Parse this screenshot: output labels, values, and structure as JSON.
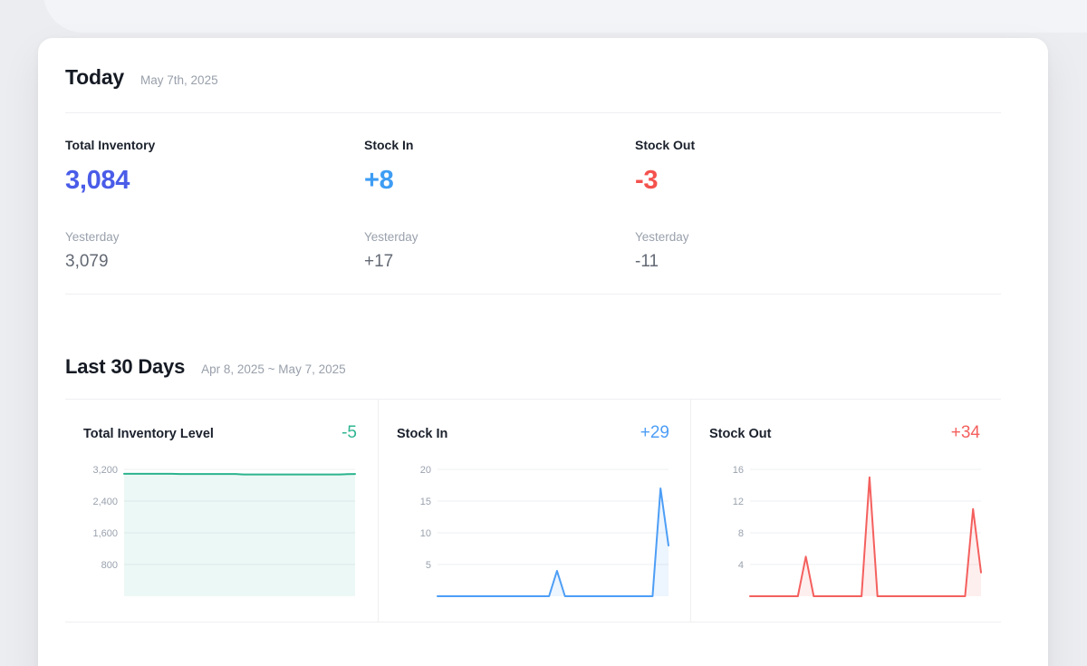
{
  "today": {
    "title": "Today",
    "date": "May 7th, 2025",
    "stats": [
      {
        "label": "Total Inventory",
        "value": "3,084",
        "color": "#4A5CE8",
        "yesterday_label": "Yesterday",
        "yesterday_value": "3,079"
      },
      {
        "label": "Stock In",
        "value": "+8",
        "color": "#3E9DF4",
        "yesterday_label": "Yesterday",
        "yesterday_value": "+17"
      },
      {
        "label": "Stock Out",
        "value": "-3",
        "color": "#F4524E",
        "yesterday_label": "Yesterday",
        "yesterday_value": "-11"
      }
    ]
  },
  "last30": {
    "title": "Last 30 Days",
    "range": "Apr 8, 2025 ~ May 7, 2025"
  },
  "chart_data": [
    {
      "type": "area",
      "title": "Total Inventory Level",
      "change_label": "-5",
      "color": "#2FB592",
      "line_color": "#2CB48E",
      "fill_color": "rgba(44,180,142,0.09)",
      "ymax": 3200,
      "ylim": [
        0,
        3200
      ],
      "grid": true,
      "x_start": "Apr 8, 2025",
      "x_end": "May 7, 2025",
      "n_points": 30,
      "yticks": [
        {
          "value": 3200,
          "label": "3,200"
        },
        {
          "value": 2400,
          "label": "2,400"
        },
        {
          "value": 1600,
          "label": "1,600"
        },
        {
          "value": 800,
          "label": "800"
        }
      ],
      "values": [
        3089,
        3089,
        3089,
        3089,
        3089,
        3089,
        3089,
        3084,
        3084,
        3084,
        3084,
        3084,
        3084,
        3084,
        3084,
        3073,
        3073,
        3073,
        3073,
        3073,
        3073,
        3073,
        3073,
        3073,
        3073,
        3073,
        3073,
        3073,
        3079,
        3084
      ]
    },
    {
      "type": "area",
      "title": "Stock In",
      "change_label": "+29",
      "color": "#4D9EF6",
      "line_color": "#4D9EF6",
      "fill_color": "rgba(77,158,246,0.10)",
      "ymax": 20,
      "ylim": [
        0,
        20
      ],
      "grid": true,
      "x_start": "Apr 8, 2025",
      "x_end": "May 7, 2025",
      "n_points": 30,
      "yticks": [
        {
          "value": 20,
          "label": "20"
        },
        {
          "value": 15,
          "label": "15"
        },
        {
          "value": 10,
          "label": "10"
        },
        {
          "value": 5,
          "label": "5"
        }
      ],
      "values": [
        0,
        0,
        0,
        0,
        0,
        0,
        0,
        0,
        0,
        0,
        0,
        0,
        0,
        0,
        0,
        4,
        0,
        0,
        0,
        0,
        0,
        0,
        0,
        0,
        0,
        0,
        0,
        0,
        17,
        8
      ]
    },
    {
      "type": "area",
      "title": "Stock Out",
      "change_label": "+34",
      "color": "#F4605E",
      "line_color": "#F4605E",
      "fill_color": "rgba(244,96,94,0.10)",
      "ymax": 16,
      "ylim": [
        0,
        16
      ],
      "grid": true,
      "x_start": "Apr 8, 2025",
      "x_end": "May 7, 2025",
      "n_points": 30,
      "yticks": [
        {
          "value": 16,
          "label": "16"
        },
        {
          "value": 12,
          "label": "12"
        },
        {
          "value": 8,
          "label": "8"
        },
        {
          "value": 4,
          "label": "4"
        }
      ],
      "values": [
        0,
        0,
        0,
        0,
        0,
        0,
        0,
        5,
        0,
        0,
        0,
        0,
        0,
        0,
        0,
        15,
        0,
        0,
        0,
        0,
        0,
        0,
        0,
        0,
        0,
        0,
        0,
        0,
        11,
        3
      ]
    }
  ]
}
